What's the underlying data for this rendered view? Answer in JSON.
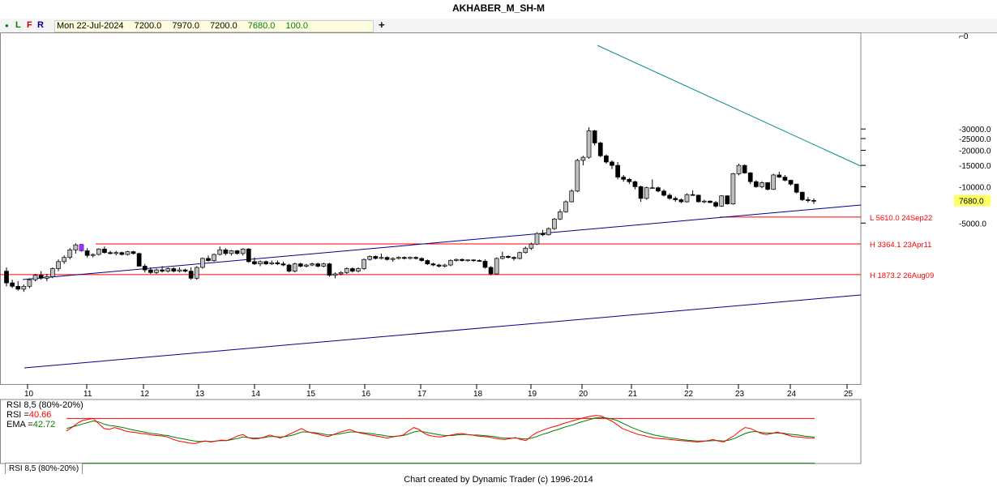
{
  "title": "AKHABER_M_SH-M",
  "toolbar": {
    "dot": "●",
    "L": "L",
    "F": "F",
    "R": "R",
    "plus": "+"
  },
  "info": {
    "date": "Mon 22-Jul-2024",
    "open": "7200.0",
    "high": "7970.0",
    "low": "7200.0",
    "close": "7680.0",
    "volume": "100.0"
  },
  "footer": "Chart created by Dynamic Trader  (c) 1996-2014",
  "rsi_tab": "RSI 8,5 (80%-20%)",
  "rsi_legend": {
    "name": "RSI 8,5 (80%-20%)",
    "rsi_label": "RSI =",
    "rsi_value": "40.66",
    "ema_label": "EMA =",
    "ema_value": "42.72"
  },
  "colors": {
    "rsi": "#ff0000",
    "ema": "#008000",
    "channel": "#00008b",
    "resistance": "#008b8b",
    "level": "#ff0000",
    "up": "#c0c0c0",
    "down": "#000000",
    "last_price_bg": "#ffff66"
  },
  "chart_data": {
    "type": "candlestick",
    "title": "AKHABER_M_SH-M",
    "y_scale": "log",
    "x_ticks": [
      "10",
      "11",
      "12",
      "13",
      "14",
      "15",
      "16",
      "17",
      "18",
      "19",
      "20",
      "21",
      "22",
      "23",
      "24",
      "25"
    ],
    "y_ticks": [
      "30000.0",
      "25000.0",
      "20000.0",
      "15000.0",
      "10000.0",
      "5000.0"
    ],
    "y_tick_values": [
      30000,
      25000,
      20000,
      15000,
      10000,
      5000
    ],
    "last_price": {
      "label": "7680.0",
      "value": 7680
    },
    "levels": [
      {
        "label": "L 5610.0 24Sep22",
        "value": 5610
      },
      {
        "label": "H 3364.1 23Apr11",
        "value": 3364.1
      },
      {
        "label": "H 1873.2 26Aug09",
        "value": 1873.2
      }
    ],
    "candles": [
      [
        2000,
        2150,
        1500,
        1600
      ],
      [
        1600,
        1700,
        1450,
        1500
      ],
      [
        1500,
        1650,
        1380,
        1420
      ],
      [
        1420,
        1550,
        1350,
        1500
      ],
      [
        1500,
        1750,
        1450,
        1700
      ],
      [
        1700,
        1900,
        1650,
        1850
      ],
      [
        1850,
        2000,
        1700,
        1750
      ],
      [
        1750,
        1900,
        1650,
        1800
      ],
      [
        1800,
        2150,
        1750,
        2100
      ],
      [
        2100,
        2500,
        2000,
        2400
      ],
      [
        2400,
        2700,
        2300,
        2600
      ],
      [
        2600,
        3100,
        2500,
        3000
      ],
      [
        3000,
        3400,
        2800,
        3300
      ],
      [
        3300,
        3364,
        2900,
        2950
      ],
      [
        2950,
        3100,
        2600,
        2700
      ],
      [
        2700,
        2800,
        2600,
        2750
      ],
      [
        2750,
        3100,
        2700,
        3050
      ],
      [
        3050,
        3200,
        2800,
        2850
      ],
      [
        2850,
        2950,
        2750,
        2800
      ],
      [
        2800,
        2950,
        2700,
        2850
      ],
      [
        2850,
        2900,
        2700,
        2750
      ],
      [
        2750,
        2950,
        2700,
        2900
      ],
      [
        2900,
        2950,
        2750,
        2800
      ],
      [
        2800,
        2850,
        2400,
        2200
      ],
      [
        2200,
        2300,
        1950,
        2050
      ],
      [
        2050,
        2150,
        1900,
        1950
      ],
      [
        1950,
        2100,
        1900,
        2050
      ],
      [
        2050,
        2200,
        1950,
        2000
      ],
      [
        2000,
        2150,
        1950,
        2100
      ],
      [
        2100,
        2150,
        1950,
        2000
      ],
      [
        2000,
        2150,
        1950,
        2050
      ],
      [
        2050,
        2100,
        1950,
        2000
      ],
      [
        2000,
        2150,
        1700,
        1750
      ],
      [
        1750,
        2200,
        1700,
        2150
      ],
      [
        2150,
        2600,
        2100,
        2550
      ],
      [
        2550,
        2700,
        2400,
        2450
      ],
      [
        2450,
        2800,
        2400,
        2750
      ],
      [
        2750,
        3200,
        2700,
        3000
      ],
      [
        3000,
        3100,
        2700,
        2800
      ],
      [
        2800,
        3000,
        2700,
        2950
      ],
      [
        2950,
        3000,
        2750,
        2800
      ],
      [
        2800,
        3100,
        2700,
        3050
      ],
      [
        3050,
        3100,
        2350,
        2400
      ],
      [
        2400,
        2600,
        2250,
        2300
      ],
      [
        2300,
        2450,
        2200,
        2400
      ],
      [
        2400,
        2450,
        2250,
        2300
      ],
      [
        2300,
        2450,
        2250,
        2350
      ],
      [
        2350,
        2450,
        2250,
        2300
      ],
      [
        2300,
        2400,
        2200,
        2250
      ],
      [
        2250,
        2300,
        1950,
        2000
      ],
      [
        2000,
        2350,
        1950,
        2300
      ],
      [
        2300,
        2350,
        2150,
        2200
      ],
      [
        2200,
        2300,
        2150,
        2250
      ],
      [
        2250,
        2350,
        2200,
        2300
      ],
      [
        2300,
        2350,
        2150,
        2200
      ],
      [
        2200,
        2350,
        2150,
        2300
      ],
      [
        2300,
        2350,
        1800,
        1850
      ],
      [
        1850,
        1950,
        1750,
        1900
      ],
      [
        1900,
        2000,
        1850,
        1950
      ],
      [
        1950,
        2150,
        1900,
        2100
      ],
      [
        2100,
        2150,
        1950,
        2000
      ],
      [
        2000,
        2150,
        1950,
        2100
      ],
      [
        2100,
        2550,
        2050,
        2500
      ],
      [
        2500,
        2700,
        2450,
        2650
      ],
      [
        2650,
        2700,
        2500,
        2550
      ],
      [
        2550,
        2800,
        2500,
        2600
      ],
      [
        2600,
        2650,
        2450,
        2500
      ],
      [
        2500,
        2600,
        2400,
        2550
      ],
      [
        2550,
        2650,
        2500,
        2600
      ],
      [
        2600,
        2650,
        2500,
        2550
      ],
      [
        2550,
        2650,
        2500,
        2600
      ],
      [
        2600,
        2650,
        2500,
        2550
      ],
      [
        2550,
        2600,
        2400,
        2450
      ],
      [
        2450,
        2500,
        2250,
        2300
      ],
      [
        2300,
        2350,
        2200,
        2250
      ],
      [
        2250,
        2300,
        2150,
        2200
      ],
      [
        2200,
        2300,
        2150,
        2250
      ],
      [
        2250,
        2500,
        2200,
        2450
      ],
      [
        2450,
        2550,
        2400,
        2500
      ],
      [
        2500,
        2550,
        2400,
        2450
      ],
      [
        2450,
        2500,
        2400,
        2480
      ],
      [
        2480,
        2500,
        2400,
        2450
      ],
      [
        2450,
        2500,
        2400,
        2420
      ],
      [
        2420,
        2500,
        2100,
        2150
      ],
      [
        2150,
        2200,
        1850,
        1900
      ],
      [
        1900,
        2600,
        1880,
        2550
      ],
      [
        2550,
        2900,
        2500,
        2650
      ],
      [
        2650,
        2700,
        2550,
        2600
      ],
      [
        2600,
        2650,
        2450,
        2550
      ],
      [
        2550,
        2900,
        2500,
        2850
      ],
      [
        2850,
        3200,
        2800,
        3100
      ],
      [
        3100,
        3450,
        3000,
        3350
      ],
      [
        3350,
        4200,
        3300,
        4100
      ],
      [
        4100,
        4400,
        3900,
        4000
      ],
      [
        4000,
        4600,
        3950,
        4500
      ],
      [
        4500,
        5500,
        4400,
        5400
      ],
      [
        5400,
        6500,
        5300,
        6200
      ],
      [
        6200,
        7700,
        6100,
        7500
      ],
      [
        7500,
        9500,
        7400,
        9200
      ],
      [
        9200,
        17000,
        9000,
        16500
      ],
      [
        16500,
        18000,
        15000,
        17500
      ],
      [
        17500,
        31000,
        17000,
        29000
      ],
      [
        29000,
        29500,
        22000,
        23000
      ],
      [
        23000,
        23500,
        17500,
        18000
      ],
      [
        18000,
        18500,
        15500,
        16000
      ],
      [
        16000,
        16500,
        14000,
        15000
      ],
      [
        15000,
        16000,
        11500,
        12000
      ],
      [
        12000,
        12500,
        11000,
        11500
      ],
      [
        11500,
        11800,
        10500,
        11000
      ],
      [
        11000,
        11200,
        9500,
        10000
      ],
      [
        10000,
        10200,
        7500,
        8000
      ],
      [
        8000,
        10000,
        7800,
        9800
      ],
      [
        9800,
        11500,
        9600,
        9800
      ],
      [
        9800,
        10000,
        9000,
        9200
      ],
      [
        9200,
        9500,
        8300,
        8500
      ],
      [
        8500,
        8800,
        7800,
        8000
      ],
      [
        8000,
        8300,
        7500,
        7800
      ],
      [
        7800,
        8000,
        7300,
        7500
      ],
      [
        7500,
        8800,
        7400,
        8600
      ],
      [
        8600,
        9300,
        8400,
        8500
      ],
      [
        8500,
        8600,
        7400,
        7500
      ],
      [
        7500,
        7800,
        7300,
        7600
      ],
      [
        7600,
        7700,
        7300,
        7400
      ],
      [
        7400,
        7600,
        6700,
        6900
      ],
      [
        6900,
        8500,
        6800,
        8400
      ],
      [
        8400,
        8500,
        7100,
        7200
      ],
      [
        7200,
        13000,
        7100,
        12800
      ],
      [
        12800,
        15500,
        12400,
        15000
      ],
      [
        15000,
        15300,
        12800,
        13000
      ],
      [
        13000,
        13200,
        10500,
        11000
      ],
      [
        11000,
        11300,
        9800,
        10000
      ],
      [
        10000,
        11100,
        9700,
        10800
      ],
      [
        10800,
        10900,
        9300,
        9500
      ],
      [
        9500,
        12800,
        9400,
        12500
      ],
      [
        12500,
        13300,
        11800,
        12000
      ],
      [
        12000,
        12500,
        11100,
        11300
      ],
      [
        11300,
        11400,
        10200,
        10500
      ],
      [
        10500,
        10600,
        8800,
        9000
      ],
      [
        9000,
        9100,
        7600,
        7800
      ],
      [
        7800,
        8200,
        7400,
        7700
      ],
      [
        7700,
        8000,
        7200,
        7680
      ]
    ],
    "rsi": [
      55,
      62,
      70,
      76,
      78,
      80,
      70,
      60,
      58,
      62,
      59,
      55,
      53,
      52,
      50,
      49,
      47,
      46,
      45,
      43,
      38,
      35,
      33,
      31,
      30,
      33,
      35,
      33,
      35,
      37,
      36,
      40,
      45,
      48,
      42,
      39,
      40,
      43,
      47,
      44,
      41,
      45,
      50,
      55,
      60,
      54,
      51,
      49,
      46,
      44,
      48,
      52,
      55,
      58,
      54,
      51,
      49,
      47,
      45,
      43,
      41,
      43,
      45,
      47,
      55,
      62,
      58,
      50,
      46,
      44,
      43,
      45,
      47,
      49,
      50,
      48,
      47,
      45,
      44,
      43,
      41,
      39,
      38,
      40,
      42,
      38,
      36,
      45,
      52,
      56,
      60,
      63,
      66,
      70,
      73,
      76,
      79,
      82,
      84,
      86,
      85,
      80,
      75,
      68,
      60,
      56,
      52,
      48,
      46,
      43,
      41,
      40,
      39,
      38,
      37,
      36,
      35,
      34,
      33,
      34,
      36,
      38,
      35,
      33,
      40,
      46,
      55,
      62,
      60,
      55,
      50,
      48,
      50,
      53,
      50,
      47,
      44,
      43,
      42,
      41,
      40.66
    ],
    "ema": [
      60,
      63,
      66,
      69,
      72,
      75,
      73,
      69,
      66,
      65,
      63,
      61,
      58,
      56,
      54,
      52,
      50,
      49,
      47,
      46,
      43,
      41,
      39,
      37,
      35,
      34,
      35,
      34,
      35,
      36,
      36,
      38,
      40,
      43,
      42,
      41,
      41,
      42,
      44,
      44,
      43,
      44,
      46,
      49,
      53,
      53,
      52,
      51,
      49,
      47,
      48,
      49,
      51,
      53,
      53,
      52,
      51,
      50,
      48,
      47,
      45,
      44,
      45,
      46,
      49,
      53,
      55,
      53,
      51,
      49,
      47,
      46,
      46,
      47,
      48,
      48,
      47,
      47,
      46,
      45,
      44,
      42,
      41,
      41,
      41,
      40,
      39,
      41,
      44,
      48,
      51,
      55,
      58,
      62,
      65,
      68,
      72,
      75,
      78,
      81,
      82,
      81,
      79,
      76,
      71,
      66,
      61,
      57,
      53,
      50,
      47,
      45,
      43,
      41,
      40,
      38,
      37,
      36,
      35,
      35,
      35,
      36,
      36,
      35,
      37,
      40,
      45,
      50,
      53,
      54,
      52,
      51,
      51,
      51,
      51,
      49,
      48,
      47,
      45,
      44,
      42.72
    ]
  }
}
